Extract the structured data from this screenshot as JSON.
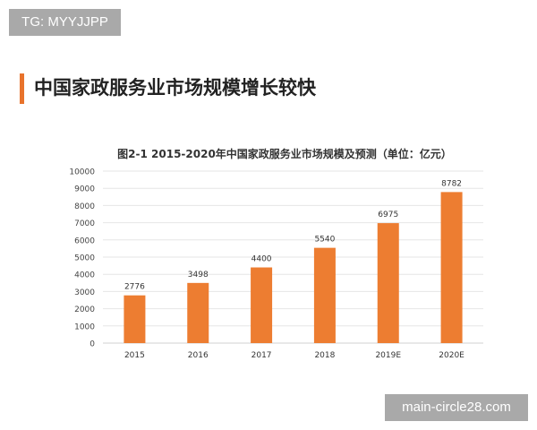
{
  "watermarks": {
    "top_left": "TG: MYYJJPP",
    "bottom_right": "main-circle28.com"
  },
  "heading": "中国家政服务业市场规模增长较快",
  "colors": {
    "accent": "#e8732c",
    "bar": "#ed7d31",
    "grid": "#e6e6e6"
  },
  "chart_data": {
    "type": "bar",
    "title": "图2-1 2015-2020年中国家政服务业市场规模及预测（单位：亿元）",
    "categories": [
      "2015",
      "2016",
      "2017",
      "2018",
      "2019E",
      "2020E"
    ],
    "values": [
      2776,
      3498,
      4400,
      5540,
      6975,
      8782
    ],
    "yticks": [
      0,
      1000,
      2000,
      3000,
      4000,
      5000,
      6000,
      7000,
      8000,
      9000,
      10000
    ],
    "ylim": [
      0,
      10000
    ],
    "grid": true,
    "data_labels": true,
    "legend": "none"
  }
}
